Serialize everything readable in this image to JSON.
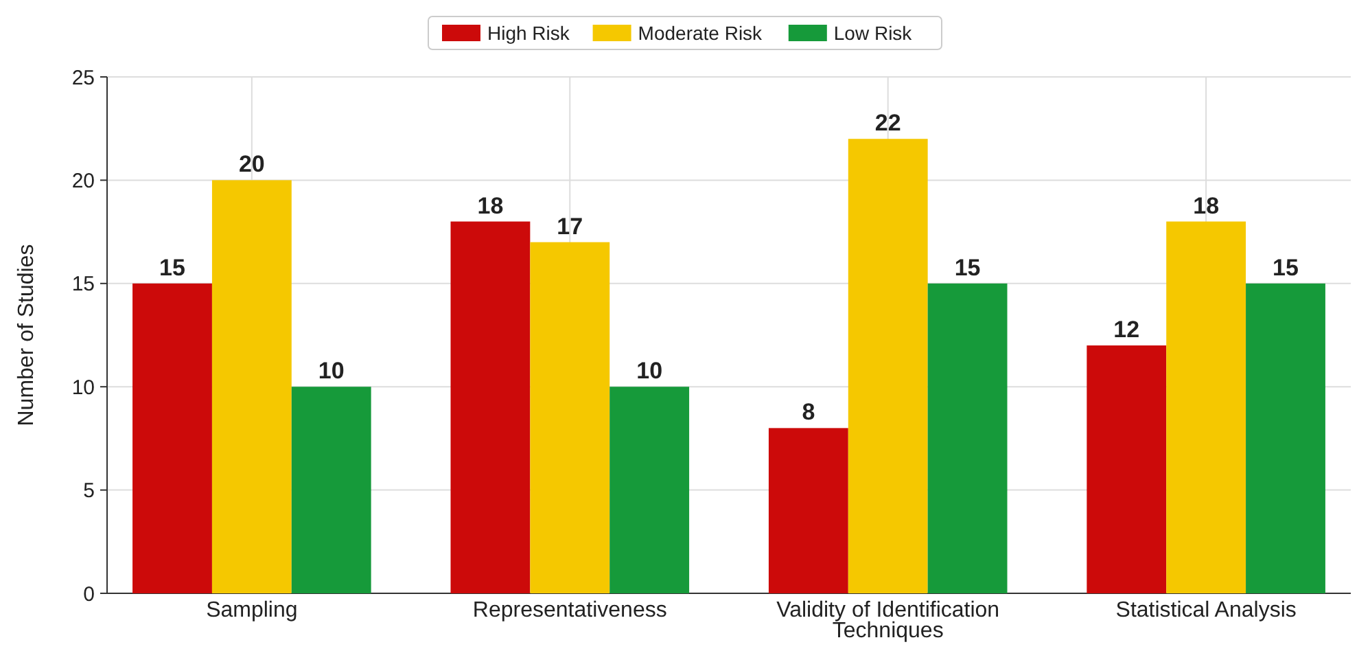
{
  "chart_data": {
    "type": "bar",
    "ylabel": "Number of Studies",
    "categories": [
      "Sampling",
      "Representativeness",
      "Validity of Identification Techniques",
      "Statistical Analysis"
    ],
    "series": [
      {
        "name": "High Risk",
        "color": "#cc0a0a",
        "values": [
          15,
          18,
          8,
          12
        ]
      },
      {
        "name": "Moderate Risk",
        "color": "#f5c800",
        "values": [
          20,
          17,
          22,
          18
        ]
      },
      {
        "name": "Low Risk",
        "color": "#169a3a",
        "values": [
          10,
          10,
          15,
          15
        ]
      }
    ],
    "ylim": [
      0,
      25
    ],
    "yticks": [
      0,
      5,
      10,
      15,
      20,
      25
    ],
    "grid": true,
    "legend": "top",
    "data_labels": true
  }
}
